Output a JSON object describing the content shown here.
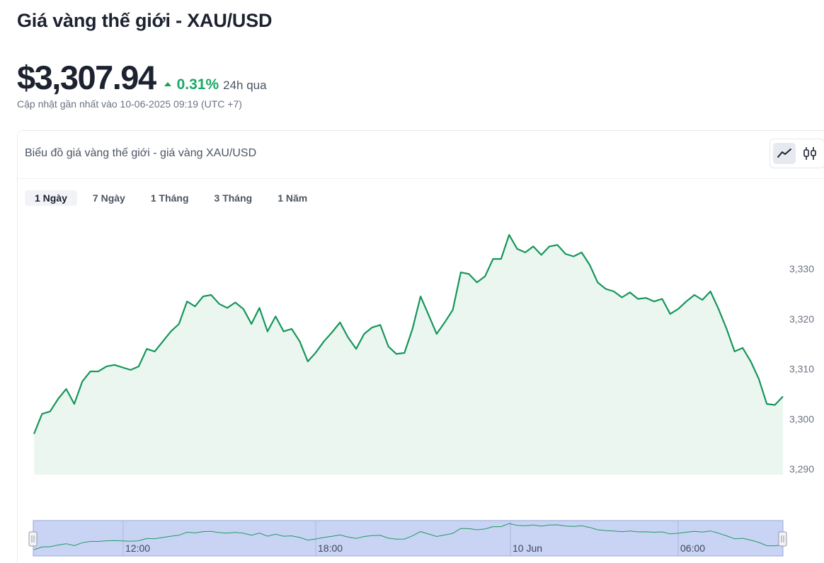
{
  "page": {
    "title": "Giá vàng thế giới - XAU/USD",
    "price": "$3,307.94",
    "change": "0.31%",
    "change_period": "24h qua",
    "updated": "Cập nhật gần nhất vào 10-06-2025 09:19 (UTC +7)"
  },
  "card": {
    "title": "Biểu đồ giá vàng thế giới - giá vàng XAU/USD",
    "toggle_icons": [
      "line-chart-icon",
      "candlestick-icon"
    ]
  },
  "tabs": [
    {
      "label": "1 Ngày",
      "active": true
    },
    {
      "label": "7 Ngày",
      "active": false
    },
    {
      "label": "1 Tháng",
      "active": false
    },
    {
      "label": "3 Tháng",
      "active": false
    },
    {
      "label": "1 Năm",
      "active": false
    }
  ],
  "colors": {
    "line": "#15965a",
    "area": "#ecf6f0",
    "up": "#1aa866",
    "navigator_fill": "#c9d4f5",
    "navigator_border": "#98a6d9"
  },
  "chart_data": {
    "type": "area",
    "ylim": [
      3290,
      3335
    ],
    "yticks": [
      3290,
      3300,
      3310,
      3320,
      3330
    ],
    "ytick_labels": [
      "3,290",
      "3,300",
      "3,310",
      "3,320",
      "3,330"
    ],
    "grid": false,
    "values": [
      3297.0,
      3301.0,
      3301.5,
      3304.0,
      3306.0,
      3303.0,
      3307.5,
      3309.5,
      3309.5,
      3310.5,
      3310.8,
      3310.3,
      3309.8,
      3310.5,
      3314.0,
      3313.5,
      3315.5,
      3317.5,
      3319.0,
      3323.5,
      3322.5,
      3324.5,
      3324.8,
      3323.0,
      3322.2,
      3323.3,
      3322.0,
      3319.0,
      3322.2,
      3317.5,
      3320.5,
      3317.5,
      3318.0,
      3315.5,
      3311.5,
      3313.3,
      3315.5,
      3317.3,
      3319.3,
      3316.3,
      3314.0,
      3317.0,
      3318.3,
      3318.8,
      3314.5,
      3313.0,
      3313.2,
      3318.0,
      3324.5,
      3320.8,
      3317.0,
      3319.3,
      3321.8,
      3329.3,
      3329.0,
      3327.3,
      3328.5,
      3332.0,
      3332.0,
      3336.8,
      3334.0,
      3333.3,
      3334.5,
      3332.8,
      3334.5,
      3334.8,
      3333.0,
      3332.5,
      3333.3,
      3330.8,
      3327.3,
      3326.0,
      3325.5,
      3324.3,
      3325.3,
      3324.0,
      3324.2,
      3323.5,
      3324.0,
      3321.0,
      3322.0,
      3323.5,
      3324.8,
      3323.8,
      3325.5,
      3322.0,
      3318.0,
      3313.5,
      3314.2,
      3311.5,
      3308.0,
      3303.0,
      3302.8,
      3304.5
    ],
    "navigator_labels": [
      "12:00",
      "18:00",
      "10 Jun",
      "06:00"
    ]
  }
}
